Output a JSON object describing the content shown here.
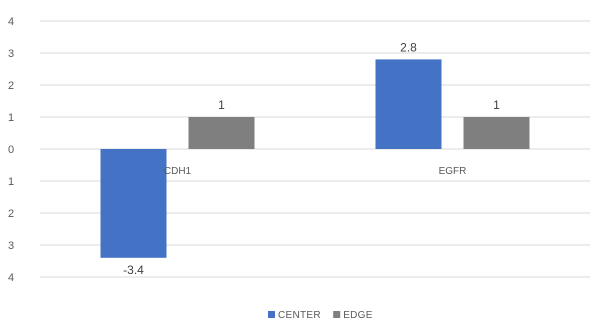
{
  "chart_data": {
    "type": "bar",
    "categories": [
      "CDH1",
      "EGFR"
    ],
    "series": [
      {
        "name": "CENTER",
        "values": [
          -3.4,
          2.8
        ],
        "color": "#4472C4"
      },
      {
        "name": "EDGE",
        "values": [
          1,
          1
        ],
        "color": "#7F7F7F"
      }
    ],
    "ylim": [
      -4,
      4
    ],
    "yticks": [
      4,
      3,
      2,
      1,
      0,
      1,
      2,
      3,
      4
    ],
    "data_labels": [
      [
        "-3.4",
        "2.8"
      ],
      [
        "1",
        "1"
      ]
    ],
    "grid": true,
    "legend": "bottom",
    "axis_color": "#D9D9D9",
    "grid_color": "#D9D9D9"
  }
}
